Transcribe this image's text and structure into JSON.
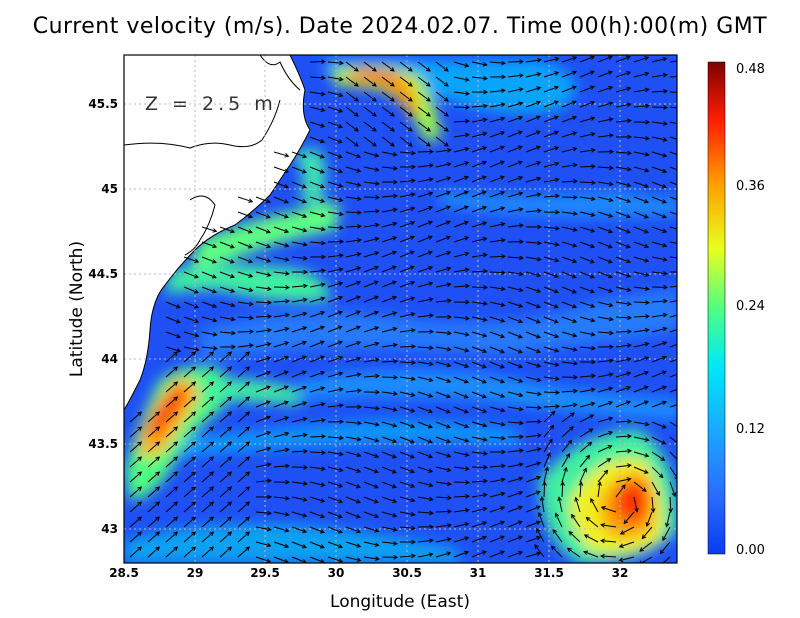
{
  "title": "Current velocity (m/s). Date 2024.02.07. Time 00(h):00(m) GMT",
  "depth_label": "Z = 2.5 m",
  "x_axis": {
    "title": "Longitude (East)",
    "ticks": [
      "28.5",
      "29",
      "29.5",
      "30",
      "30.5",
      "31",
      "31.5",
      "32"
    ],
    "range": [
      28.5,
      32.45
    ]
  },
  "y_axis": {
    "title": "Latitude (North)",
    "ticks": [
      "43",
      "43.5",
      "44",
      "44.5",
      "45",
      "45.5"
    ],
    "range": [
      42.8,
      45.78
    ]
  },
  "colorbar": {
    "ticks": [
      "0.48",
      "0.36",
      "0.24",
      "0.12",
      "0.00"
    ],
    "range": [
      0.0,
      0.48
    ],
    "colors": [
      "#0a3cf0",
      "#2a8cff",
      "#00e0ff",
      "#50ff90",
      "#f0ff20",
      "#ffa000",
      "#ff2000",
      "#c00000",
      "#800000"
    ]
  },
  "colors": {
    "land": "#ffffff",
    "coastline": "#000000",
    "grid": "#bbbbbb",
    "arrows": "#000000"
  }
}
